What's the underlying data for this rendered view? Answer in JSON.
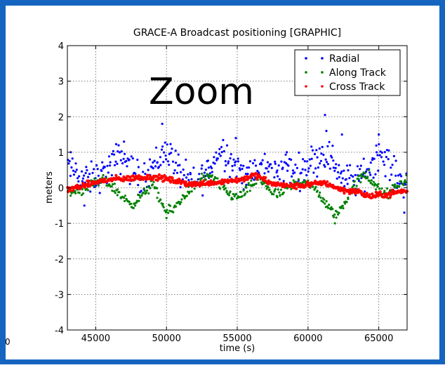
{
  "colors": {
    "frame": "#1565c0",
    "radial": "#0000ff",
    "along_track": "#008000",
    "cross_track": "#ff0000",
    "grid": "#555555"
  },
  "overlay_label": "Zoom",
  "stray_glyph": "0",
  "chart_data": {
    "type": "scatter",
    "title": "GRACE-A Broadcast positioning [GRAPHIC]",
    "xlabel": "time (s)",
    "ylabel": "meters",
    "xlim": [
      43000,
      67000
    ],
    "ylim": [
      -4,
      4
    ],
    "xticks": [
      45000,
      50000,
      55000,
      60000,
      65000
    ],
    "xtick_labels": [
      "45000",
      "50000",
      "55000",
      "60000",
      "65000"
    ],
    "yticks": [
      4,
      3,
      2,
      1,
      0,
      -1,
      -2,
      -3,
      -4
    ],
    "ytick_labels": [
      "4",
      "3",
      "2",
      "1",
      "0",
      "-1",
      "-2",
      "-3",
      "-4"
    ],
    "grid": true,
    "legend_position": "top-right",
    "series": [
      {
        "name": "Radial",
        "color": "#0000ff",
        "x": [
          43000,
          43500,
          44000,
          44500,
          45000,
          45500,
          46000,
          46500,
          47000,
          47500,
          48000,
          48500,
          49000,
          49500,
          50000,
          50500,
          51000,
          51500,
          52000,
          52500,
          53000,
          53500,
          54000,
          54500,
          55000,
          55500,
          56000,
          56500,
          57000,
          57500,
          58000,
          58500,
          59000,
          59500,
          60000,
          60500,
          61000,
          61500,
          62000,
          62500,
          63000,
          63500,
          64000,
          64500,
          65000,
          65500,
          66000,
          66500,
          67000
        ],
        "y": [
          0.6,
          0.5,
          0.3,
          0.2,
          0.3,
          0.4,
          0.6,
          0.8,
          0.9,
          0.5,
          0.3,
          0.4,
          0.6,
          0.8,
          1.1,
          0.8,
          0.4,
          0.2,
          0.1,
          0.3,
          0.5,
          0.9,
          1.1,
          0.8,
          0.6,
          0.4,
          0.3,
          0.5,
          0.6,
          0.4,
          0.5,
          0.6,
          0.4,
          0.5,
          0.7,
          0.8,
          1.0,
          0.9,
          0.6,
          0.3,
          0.2,
          0.2,
          0.4,
          0.7,
          1.0,
          0.8,
          0.4,
          0.2,
          0.2
        ],
        "points": [
          [
            44200,
            -0.5
          ],
          [
            47000,
            1.3
          ],
          [
            49700,
            1.8
          ],
          [
            54900,
            1.4
          ],
          [
            58500,
            1.0
          ],
          [
            61200,
            2.05
          ],
          [
            61300,
            1.6
          ],
          [
            62400,
            1.5
          ],
          [
            65000,
            1.5
          ],
          [
            66800,
            -0.7
          ]
        ]
      },
      {
        "name": "Along Track",
        "color": "#008000",
        "x": [
          43000,
          43500,
          44000,
          44500,
          45000,
          45500,
          46000,
          46500,
          47000,
          47500,
          48000,
          48500,
          49000,
          49500,
          50000,
          50500,
          51000,
          51500,
          52000,
          52500,
          53000,
          53500,
          54000,
          54500,
          55000,
          55500,
          56000,
          56500,
          57000,
          57500,
          58000,
          58500,
          59000,
          59500,
          60000,
          60500,
          61000,
          61500,
          62000,
          62500,
          63000,
          63500,
          64000,
          64500,
          65000,
          65500,
          66000,
          66500,
          67000
        ],
        "y": [
          -0.15,
          -0.1,
          -0.05,
          0.05,
          0.1,
          0.2,
          0.1,
          -0.1,
          -0.3,
          -0.45,
          -0.35,
          -0.1,
          0.1,
          -0.3,
          -0.7,
          -0.6,
          -0.35,
          -0.1,
          0.05,
          0.2,
          0.3,
          0.2,
          0.0,
          -0.2,
          -0.25,
          -0.15,
          0.05,
          0.25,
          0.1,
          -0.15,
          -0.2,
          -0.05,
          0.1,
          0.2,
          0.15,
          -0.05,
          -0.3,
          -0.6,
          -0.75,
          -0.5,
          -0.1,
          0.2,
          0.35,
          0.2,
          -0.05,
          -0.2,
          -0.05,
          0.1,
          0.25
        ],
        "points": [
          [
            61900,
            -1.0
          ],
          [
            50000,
            -0.85
          ],
          [
            52500,
            0.4
          ],
          [
            64300,
            0.5
          ]
        ]
      },
      {
        "name": "Cross Track",
        "color": "#ff0000",
        "x": [
          43000,
          43500,
          44000,
          44500,
          45000,
          45500,
          46000,
          46500,
          47000,
          47500,
          48000,
          48500,
          49000,
          49500,
          50000,
          50500,
          51000,
          51500,
          52000,
          52500,
          53000,
          53500,
          54000,
          54500,
          55000,
          55500,
          56000,
          56500,
          57000,
          57500,
          58000,
          58500,
          59000,
          59500,
          60000,
          60500,
          61000,
          61500,
          62000,
          62500,
          63000,
          63500,
          64000,
          64500,
          65000,
          65500,
          66000,
          66500,
          67000
        ],
        "y": [
          -0.05,
          0.0,
          0.05,
          0.1,
          0.15,
          0.2,
          0.22,
          0.25,
          0.25,
          0.27,
          0.28,
          0.3,
          0.3,
          0.28,
          0.25,
          0.2,
          0.15,
          0.12,
          0.1,
          0.12,
          0.15,
          0.15,
          0.18,
          0.2,
          0.22,
          0.25,
          0.35,
          0.32,
          0.2,
          0.1,
          0.1,
          0.05,
          0.05,
          0.05,
          0.1,
          0.1,
          0.15,
          0.1,
          0.0,
          -0.05,
          -0.1,
          -0.1,
          -0.2,
          -0.25,
          -0.2,
          -0.2,
          -0.15,
          -0.1,
          -0.1
        ],
        "points": []
      }
    ]
  }
}
